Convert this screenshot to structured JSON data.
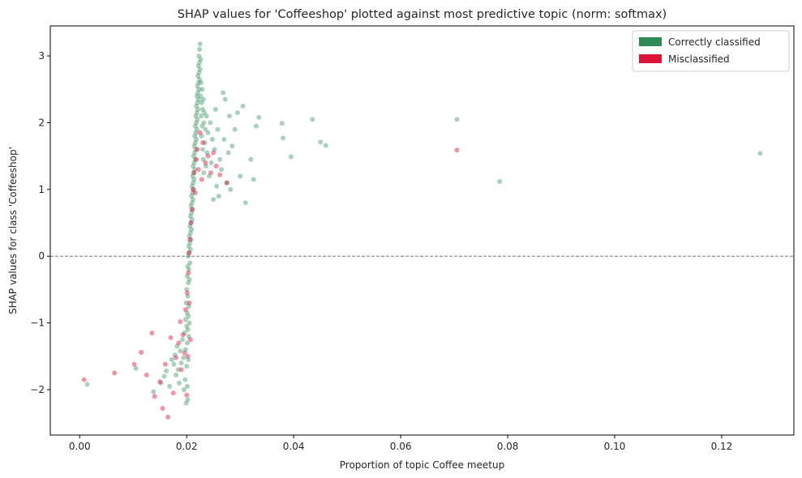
{
  "chart_data": {
    "type": "scatter",
    "title": "SHAP values for 'Coffeeshop' plotted against most predictive topic (norm: softmax)",
    "xlabel": "Proportion of topic Coffee meetup",
    "ylabel": "SHAP values for class 'Coffeeshop'",
    "xlim": [
      -0.0055,
      0.1335
    ],
    "ylim": [
      -2.68,
      3.45
    ],
    "x_ticks": [
      {
        "value": 0.0,
        "label": "0.00"
      },
      {
        "value": 0.02,
        "label": "0.02"
      },
      {
        "value": 0.04,
        "label": "0.04"
      },
      {
        "value": 0.06,
        "label": "0.06"
      },
      {
        "value": 0.08,
        "label": "0.08"
      },
      {
        "value": 0.1,
        "label": "0.10"
      },
      {
        "value": 0.12,
        "label": "0.12"
      }
    ],
    "y_ticks": [
      {
        "value": -2,
        "label": "−2"
      },
      {
        "value": -1,
        "label": "−1"
      },
      {
        "value": 0,
        "label": "0"
      },
      {
        "value": 1,
        "label": "1"
      },
      {
        "value": 2,
        "label": "2"
      },
      {
        "value": 3,
        "label": "3"
      }
    ],
    "reference_line": {
      "y": 0,
      "style": "dashed",
      "color": "#7f7f7f"
    },
    "grid": false,
    "legend_position": "top-right",
    "series": [
      {
        "name": "Correctly classified",
        "color": "#2e8b57",
        "points": [
          [
            0.0014,
            -1.92
          ],
          [
            0.0105,
            -1.68
          ],
          [
            0.0138,
            -2.03
          ],
          [
            0.0152,
            -1.9
          ],
          [
            0.0158,
            -1.8
          ],
          [
            0.0162,
            -1.72
          ],
          [
            0.0168,
            -1.95
          ],
          [
            0.0172,
            -1.55
          ],
          [
            0.0176,
            -1.62
          ],
          [
            0.0178,
            -1.48
          ],
          [
            0.018,
            -1.78
          ],
          [
            0.0182,
            -1.35
          ],
          [
            0.0184,
            -1.7
          ],
          [
            0.0186,
            -1.9
          ],
          [
            0.0188,
            -1.42
          ],
          [
            0.019,
            -1.6
          ],
          [
            0.0192,
            -1.25
          ],
          [
            0.0194,
            -1.52
          ],
          [
            0.0195,
            -2.0
          ],
          [
            0.0196,
            -1.15
          ],
          [
            0.0197,
            -1.85
          ],
          [
            0.0198,
            -0.95
          ],
          [
            0.0198,
            -1.4
          ],
          [
            0.0199,
            -0.7
          ],
          [
            0.0199,
            -2.2
          ],
          [
            0.02,
            -0.5
          ],
          [
            0.02,
            -1.05
          ],
          [
            0.02,
            -1.65
          ],
          [
            0.0201,
            -0.3
          ],
          [
            0.0201,
            -0.85
          ],
          [
            0.0201,
            -1.3
          ],
          [
            0.0201,
            -1.95
          ],
          [
            0.0202,
            -0.15
          ],
          [
            0.0202,
            -0.6
          ],
          [
            0.0202,
            -1.1
          ],
          [
            0.0202,
            -2.15
          ],
          [
            0.0203,
            0.0
          ],
          [
            0.0203,
            -0.4
          ],
          [
            0.0203,
            -0.9
          ],
          [
            0.0203,
            -1.55
          ],
          [
            0.0204,
            0.15
          ],
          [
            0.0204,
            -0.2
          ],
          [
            0.0204,
            -0.75
          ],
          [
            0.0204,
            -1.2
          ],
          [
            0.0205,
            0.3
          ],
          [
            0.0205,
            0.05
          ],
          [
            0.0205,
            -0.35
          ],
          [
            0.0205,
            -1.0
          ],
          [
            0.0206,
            0.45
          ],
          [
            0.0206,
            0.2
          ],
          [
            0.0206,
            -0.1
          ],
          [
            0.0207,
            0.6
          ],
          [
            0.0207,
            0.35
          ],
          [
            0.0207,
            0.1
          ],
          [
            0.0208,
            0.75
          ],
          [
            0.0208,
            0.5
          ],
          [
            0.0208,
            0.25
          ],
          [
            0.0209,
            0.9
          ],
          [
            0.0209,
            0.65
          ],
          [
            0.0209,
            0.4
          ],
          [
            0.021,
            1.05
          ],
          [
            0.021,
            0.8
          ],
          [
            0.021,
            0.55
          ],
          [
            0.0211,
            1.2
          ],
          [
            0.0211,
            0.95
          ],
          [
            0.0211,
            0.7
          ],
          [
            0.0212,
            1.35
          ],
          [
            0.0212,
            1.1
          ],
          [
            0.0212,
            0.85
          ],
          [
            0.0213,
            1.5
          ],
          [
            0.0213,
            1.25
          ],
          [
            0.0213,
            1.0
          ],
          [
            0.0214,
            1.65
          ],
          [
            0.0214,
            1.4
          ],
          [
            0.0214,
            1.15
          ],
          [
            0.0215,
            1.8
          ],
          [
            0.0215,
            1.55
          ],
          [
            0.0215,
            1.3
          ],
          [
            0.0216,
            1.95
          ],
          [
            0.0216,
            1.7
          ],
          [
            0.0216,
            1.45
          ],
          [
            0.0217,
            2.1
          ],
          [
            0.0217,
            1.85
          ],
          [
            0.0217,
            1.6
          ],
          [
            0.0218,
            2.25
          ],
          [
            0.0218,
            2.0
          ],
          [
            0.0218,
            1.75
          ],
          [
            0.0219,
            2.4
          ],
          [
            0.0219,
            2.15
          ],
          [
            0.0219,
            1.9
          ],
          [
            0.022,
            2.55
          ],
          [
            0.022,
            2.3
          ],
          [
            0.022,
            2.05
          ],
          [
            0.0221,
            2.7
          ],
          [
            0.0221,
            2.45
          ],
          [
            0.0221,
            2.2
          ],
          [
            0.0222,
            2.85
          ],
          [
            0.0222,
            2.6
          ],
          [
            0.0222,
            2.35
          ],
          [
            0.0223,
            3.0
          ],
          [
            0.0223,
            2.75
          ],
          [
            0.0223,
            2.5
          ],
          [
            0.0224,
            3.1
          ],
          [
            0.0224,
            2.9
          ],
          [
            0.0224,
            2.65
          ],
          [
            0.0225,
            3.18
          ],
          [
            0.0225,
            2.8
          ],
          [
            0.0226,
            2.95
          ],
          [
            0.0226,
            2.4
          ],
          [
            0.0227,
            2.6
          ],
          [
            0.0227,
            2.1
          ],
          [
            0.0228,
            2.3
          ],
          [
            0.0228,
            1.8
          ],
          [
            0.0229,
            2.5
          ],
          [
            0.0229,
            1.95
          ],
          [
            0.023,
            2.2
          ],
          [
            0.023,
            1.6
          ],
          [
            0.0231,
            2.35
          ],
          [
            0.0231,
            1.45
          ],
          [
            0.0232,
            2.0
          ],
          [
            0.0232,
            1.25
          ],
          [
            0.0233,
            2.15
          ],
          [
            0.0234,
            1.7
          ],
          [
            0.0235,
            1.9
          ],
          [
            0.0236,
            1.35
          ],
          [
            0.0237,
            2.1
          ],
          [
            0.0238,
            1.55
          ],
          [
            0.024,
            1.85
          ],
          [
            0.0242,
            1.2
          ],
          [
            0.0244,
            2.0
          ],
          [
            0.0246,
            1.4
          ],
          [
            0.0248,
            1.75
          ],
          [
            0.025,
            0.85
          ],
          [
            0.0252,
            1.6
          ],
          [
            0.0254,
            2.2
          ],
          [
            0.0256,
            1.05
          ],
          [
            0.0258,
            1.9
          ],
          [
            0.026,
            0.9
          ],
          [
            0.0262,
            1.45
          ],
          [
            0.0265,
            1.3
          ],
          [
            0.0268,
            2.45
          ],
          [
            0.027,
            1.75
          ],
          [
            0.0272,
            2.35
          ],
          [
            0.0275,
            1.1
          ],
          [
            0.0278,
            1.55
          ],
          [
            0.028,
            2.1
          ],
          [
            0.0282,
            1.0
          ],
          [
            0.0285,
            1.65
          ],
          [
            0.029,
            1.9
          ],
          [
            0.0295,
            2.15
          ],
          [
            0.03,
            1.2
          ],
          [
            0.0305,
            2.25
          ],
          [
            0.031,
            0.8
          ],
          [
            0.032,
            1.45
          ],
          [
            0.0325,
            1.15
          ],
          [
            0.033,
            1.95
          ],
          [
            0.0335,
            2.08
          ],
          [
            0.0378,
            1.99
          ],
          [
            0.038,
            1.77
          ],
          [
            0.0395,
            1.49
          ],
          [
            0.0435,
            2.05
          ],
          [
            0.045,
            1.71
          ],
          [
            0.046,
            1.66
          ],
          [
            0.0705,
            2.05
          ],
          [
            0.0785,
            1.12
          ],
          [
            0.1272,
            1.54
          ]
        ]
      },
      {
        "name": "Misclassified",
        "color": "#dc143c",
        "points": [
          [
            0.0008,
            -1.85
          ],
          [
            0.0065,
            -1.75
          ],
          [
            0.0102,
            -1.62
          ],
          [
            0.0115,
            -1.44
          ],
          [
            0.0125,
            -1.78
          ],
          [
            0.0135,
            -1.15
          ],
          [
            0.014,
            -2.1
          ],
          [
            0.015,
            -1.88
          ],
          [
            0.0155,
            -2.28
          ],
          [
            0.016,
            -1.62
          ],
          [
            0.0165,
            -2.41
          ],
          [
            0.017,
            -1.22
          ],
          [
            0.0175,
            -2.05
          ],
          [
            0.018,
            -1.52
          ],
          [
            0.0185,
            -1.3
          ],
          [
            0.0188,
            -0.98
          ],
          [
            0.019,
            -1.7
          ],
          [
            0.0193,
            -1.18
          ],
          [
            0.0196,
            -1.45
          ],
          [
            0.0198,
            -0.8
          ],
          [
            0.02,
            -2.08
          ],
          [
            0.0201,
            -0.55
          ],
          [
            0.0202,
            -1.5
          ],
          [
            0.0203,
            -0.25
          ],
          [
            0.0204,
            0.05
          ],
          [
            0.0205,
            -0.7
          ],
          [
            0.0206,
            0.25
          ],
          [
            0.0207,
            -1.25
          ],
          [
            0.0208,
            0.5
          ],
          [
            0.021,
            0.7
          ],
          [
            0.0212,
            1.0
          ],
          [
            0.0214,
            1.25
          ],
          [
            0.0216,
            0.95
          ],
          [
            0.0218,
            1.45
          ],
          [
            0.022,
            1.6
          ],
          [
            0.0222,
            1.3
          ],
          [
            0.0225,
            1.85
          ],
          [
            0.0228,
            1.15
          ],
          [
            0.023,
            1.7
          ],
          [
            0.0235,
            1.4
          ],
          [
            0.024,
            1.5
          ],
          [
            0.0245,
            1.25
          ],
          [
            0.025,
            1.55
          ],
          [
            0.0255,
            1.35
          ],
          [
            0.0262,
            1.22
          ],
          [
            0.0275,
            1.1
          ],
          [
            0.0705,
            1.59
          ]
        ]
      }
    ]
  }
}
